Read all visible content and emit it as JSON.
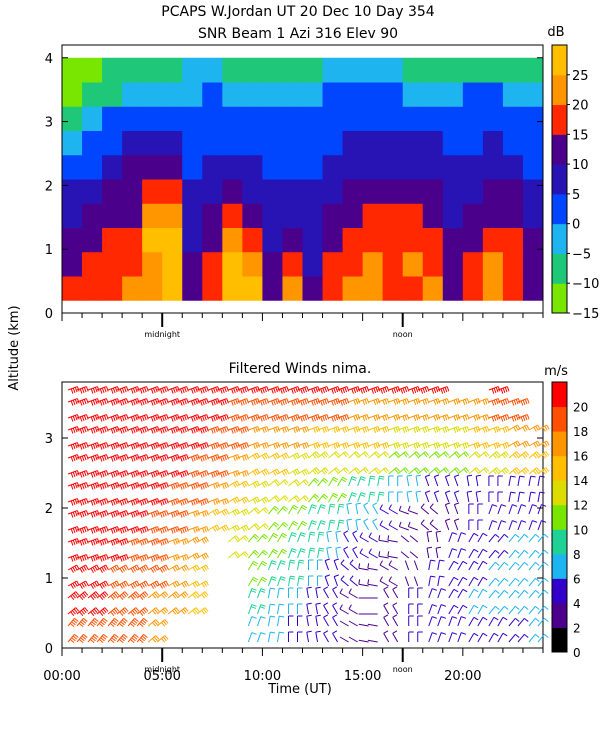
{
  "header": {
    "title_line1": "PCAPS W.Jordan UT  20 Dec 10 Day 354",
    "title_line2": "SNR Beam 1 Azi 316 Elev 90"
  },
  "axes": {
    "ylabel": "Altitude (km)",
    "xlabel": "Time (UT)",
    "midnight_label": "midnight",
    "noon_label": "noon",
    "x_ticks": [
      "00:00",
      "05:00",
      "10:00",
      "15:00",
      "20:00"
    ],
    "y_ticks": [
      "0",
      "1",
      "2",
      "3",
      "4"
    ]
  },
  "colors": {
    "snr_scale": [
      "#78e600",
      "#1ec878",
      "#1eb4f0",
      "#0046ff",
      "#2814b4",
      "#4b008c",
      "#ff2800",
      "#ff9600",
      "#ffbe00"
    ],
    "wind_scale": [
      "#000000",
      "#4b008c",
      "#3200c8",
      "#1eb4f0",
      "#1ed296",
      "#78e600",
      "#dcdc00",
      "#ffbe00",
      "#ff9600",
      "#ff5000",
      "#ff0000"
    ]
  },
  "chart_data": [
    {
      "type": "heatmap",
      "title": "SNR Beam 1 Azi 316 Elev 90",
      "xlabel": "",
      "ylabel": "Altitude (km)",
      "xlim_hours": [
        0,
        24
      ],
      "ylim_km": [
        0,
        4.2
      ],
      "data_altitude_range_km": [
        0.2,
        4.0
      ],
      "colorbar": {
        "unit": "dB",
        "ticks": [
          "25",
          "20",
          "15",
          "10",
          "5",
          "0",
          "−5",
          "−10",
          "−15"
        ],
        "range": [
          -15,
          30
        ]
      },
      "column_hours": [
        0,
        1,
        2,
        3,
        4,
        5,
        6,
        7,
        8,
        9,
        10,
        11,
        12,
        13,
        14,
        15,
        16,
        17,
        18,
        19,
        20,
        21,
        22,
        23
      ],
      "row_altitudes_km": [
        0.4,
        0.8,
        1.2,
        1.6,
        2.0,
        2.4,
        2.8,
        3.2,
        3.6,
        4.0
      ],
      "snr_db": [
        [
          15,
          18,
          16,
          20,
          20,
          25,
          12,
          16,
          25,
          25,
          14,
          20,
          10,
          18,
          20,
          22,
          16,
          18,
          20,
          14,
          18,
          20,
          16,
          14
        ],
        [
          12,
          16,
          18,
          18,
          22,
          25,
          10,
          15,
          25,
          20,
          10,
          18,
          8,
          15,
          18,
          20,
          18,
          20,
          18,
          12,
          15,
          20,
          18,
          12
        ],
        [
          10,
          14,
          16,
          16,
          25,
          25,
          8,
          12,
          20,
          16,
          8,
          10,
          6,
          12,
          15,
          18,
          18,
          18,
          16,
          10,
          12,
          18,
          16,
          10
        ],
        [
          8,
          10,
          14,
          14,
          20,
          22,
          6,
          10,
          15,
          12,
          6,
          8,
          6,
          10,
          12,
          16,
          16,
          15,
          12,
          8,
          10,
          14,
          12,
          8
        ],
        [
          6,
          8,
          10,
          12,
          16,
          16,
          5,
          8,
          12,
          8,
          5,
          6,
          5,
          8,
          10,
          12,
          12,
          12,
          10,
          8,
          8,
          10,
          10,
          6
        ],
        [
          2,
          4,
          8,
          10,
          10,
          10,
          4,
          6,
          8,
          6,
          4,
          4,
          4,
          6,
          8,
          8,
          8,
          8,
          8,
          6,
          6,
          8,
          6,
          4
        ],
        [
          -4,
          0,
          4,
          6,
          6,
          6,
          2,
          4,
          4,
          4,
          2,
          2,
          2,
          4,
          6,
          6,
          6,
          6,
          6,
          4,
          4,
          6,
          4,
          2
        ],
        [
          -8,
          -5,
          0,
          2,
          2,
          2,
          0,
          2,
          2,
          0,
          0,
          0,
          0,
          2,
          2,
          4,
          4,
          2,
          2,
          2,
          2,
          2,
          0,
          0
        ],
        [
          -12,
          -10,
          -6,
          -4,
          -4,
          -4,
          -2,
          0,
          -2,
          -4,
          -4,
          -4,
          -4,
          0,
          0,
          0,
          0,
          -2,
          -4,
          -2,
          0,
          0,
          -4,
          -4
        ],
        [
          -12,
          -12,
          -10,
          -8,
          -8,
          -6,
          -4,
          -4,
          -6,
          -8,
          -8,
          -8,
          -6,
          -4,
          -4,
          -4,
          -4,
          -6,
          -10,
          -8,
          -8,
          -8,
          -6,
          -6
        ]
      ]
    },
    {
      "type": "scatter",
      "subtype": "wind-barbs",
      "title": "Filtered Winds nima.",
      "xlabel": "Time (UT)",
      "ylabel": "Altitude (km)",
      "xlim_hours": [
        0,
        24
      ],
      "ylim_km": [
        0,
        3.8
      ],
      "colorbar": {
        "unit": "m/s",
        "ticks": [
          "20",
          "18",
          "16",
          "14",
          "12",
          "10",
          "8",
          "6",
          "4",
          "2",
          "0"
        ],
        "range": [
          0,
          22
        ]
      },
      "column_hours": [
        0,
        1,
        2,
        3,
        4,
        5,
        6,
        7,
        8,
        9,
        10,
        11,
        12,
        13,
        14,
        15,
        16,
        17,
        18,
        19,
        20,
        21,
        22,
        23
      ],
      "row_altitudes_km": [
        0.2,
        0.6,
        1.0,
        1.4,
        1.8,
        2.2,
        2.6,
        3.0,
        3.4,
        3.8
      ],
      "speed_ms": [
        [
          18,
          18,
          18,
          18,
          16,
          null,
          null,
          null,
          null,
          6,
          6,
          5,
          5,
          4,
          2,
          2,
          3,
          4,
          4,
          5,
          5,
          5,
          5,
          6
        ],
        [
          20,
          20,
          19,
          18,
          17,
          16,
          15,
          null,
          null,
          8,
          7,
          6,
          5,
          4,
          3,
          2,
          3,
          4,
          5,
          5,
          6,
          6,
          6,
          6
        ],
        [
          20,
          20,
          19,
          18,
          18,
          17,
          15,
          null,
          null,
          10,
          9,
          8,
          7,
          5,
          4,
          3,
          3,
          2,
          4,
          5,
          5,
          6,
          6,
          6
        ],
        [
          20,
          20,
          20,
          19,
          19,
          17,
          16,
          null,
          12,
          11,
          10,
          9,
          8,
          6,
          5,
          4,
          3,
          2,
          3,
          4,
          5,
          5,
          6,
          6
        ],
        [
          20,
          20,
          20,
          20,
          19,
          18,
          17,
          15,
          13,
          12,
          11,
          10,
          9,
          8,
          7,
          6,
          4,
          3,
          3,
          3,
          4,
          4,
          4,
          4
        ],
        [
          20,
          20,
          20,
          20,
          20,
          19,
          18,
          16,
          14,
          13,
          12,
          12,
          11,
          10,
          9,
          8,
          7,
          6,
          5,
          4,
          4,
          5,
          5,
          5
        ],
        [
          20,
          20,
          20,
          20,
          20,
          20,
          19,
          18,
          16,
          15,
          14,
          13,
          13,
          12,
          12,
          12,
          11,
          11,
          10,
          10,
          12,
          13,
          14,
          14
        ],
        [
          20,
          20,
          20,
          20,
          20,
          20,
          20,
          19,
          18,
          17,
          16,
          16,
          15,
          14,
          14,
          14,
          13,
          13,
          13,
          13,
          14,
          15,
          16,
          16
        ],
        [
          20,
          20,
          20,
          20,
          20,
          20,
          20,
          20,
          19,
          19,
          18,
          18,
          18,
          18,
          17,
          17,
          17,
          17,
          17,
          17,
          17,
          18,
          18,
          null
        ],
        [
          20,
          20,
          20,
          20,
          20,
          20,
          20,
          20,
          20,
          20,
          20,
          20,
          20,
          20,
          20,
          20,
          20,
          20,
          20,
          null,
          null,
          20,
          null,
          null
        ]
      ],
      "direction_deg": [
        [
          220,
          220,
          220,
          220,
          230,
          null,
          null,
          null,
          null,
          200,
          190,
          180,
          170,
          150,
          120,
          100,
          150,
          180,
          200,
          200,
          210,
          210,
          220,
          220
        ],
        [
          230,
          230,
          230,
          230,
          230,
          230,
          230,
          null,
          null,
          200,
          190,
          180,
          170,
          150,
          120,
          90,
          150,
          180,
          200,
          210,
          210,
          220,
          220,
          220
        ],
        [
          240,
          240,
          240,
          240,
          240,
          240,
          240,
          null,
          null,
          210,
          200,
          190,
          180,
          160,
          130,
          100,
          120,
          160,
          190,
          210,
          210,
          220,
          220,
          220
        ],
        [
          250,
          250,
          250,
          250,
          250,
          250,
          240,
          null,
          230,
          220,
          210,
          200,
          190,
          170,
          150,
          120,
          100,
          130,
          170,
          200,
          210,
          220,
          220,
          220
        ],
        [
          250,
          250,
          250,
          250,
          250,
          250,
          250,
          240,
          240,
          230,
          220,
          210,
          200,
          190,
          170,
          150,
          120,
          110,
          130,
          160,
          180,
          200,
          200,
          200
        ],
        [
          250,
          250,
          250,
          250,
          250,
          250,
          250,
          250,
          240,
          240,
          230,
          230,
          220,
          210,
          200,
          190,
          180,
          170,
          160,
          160,
          170,
          180,
          190,
          190
        ],
        [
          250,
          250,
          250,
          250,
          250,
          250,
          250,
          250,
          250,
          240,
          240,
          240,
          230,
          230,
          230,
          230,
          230,
          230,
          230,
          230,
          230,
          230,
          230,
          230
        ],
        [
          250,
          250,
          250,
          250,
          250,
          250,
          250,
          250,
          250,
          250,
          250,
          250,
          250,
          250,
          250,
          250,
          250,
          250,
          250,
          250,
          250,
          250,
          240,
          240
        ],
        [
          250,
          250,
          250,
          250,
          250,
          250,
          250,
          250,
          250,
          250,
          250,
          250,
          250,
          250,
          250,
          250,
          250,
          250,
          250,
          250,
          250,
          250,
          250,
          null
        ],
        [
          250,
          250,
          250,
          250,
          250,
          250,
          250,
          250,
          250,
          250,
          250,
          250,
          250,
          250,
          250,
          250,
          250,
          250,
          250,
          null,
          null,
          250,
          null,
          null
        ]
      ]
    }
  ]
}
